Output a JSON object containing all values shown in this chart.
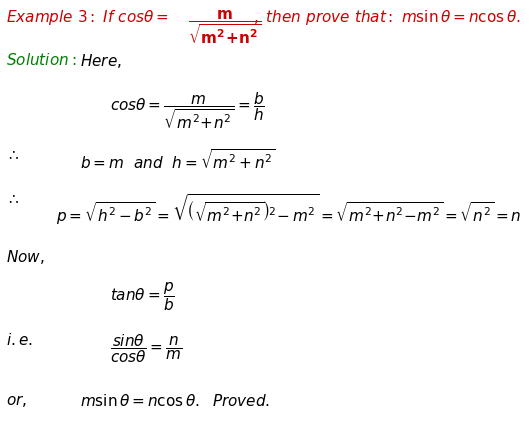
{
  "bg_color": "#ffffff",
  "red": "#cc0000",
  "green": "#008000",
  "black": "#000000",
  "fig_width": 5.3,
  "fig_height": 4.25,
  "dpi": 100,
  "fs": 11.0
}
